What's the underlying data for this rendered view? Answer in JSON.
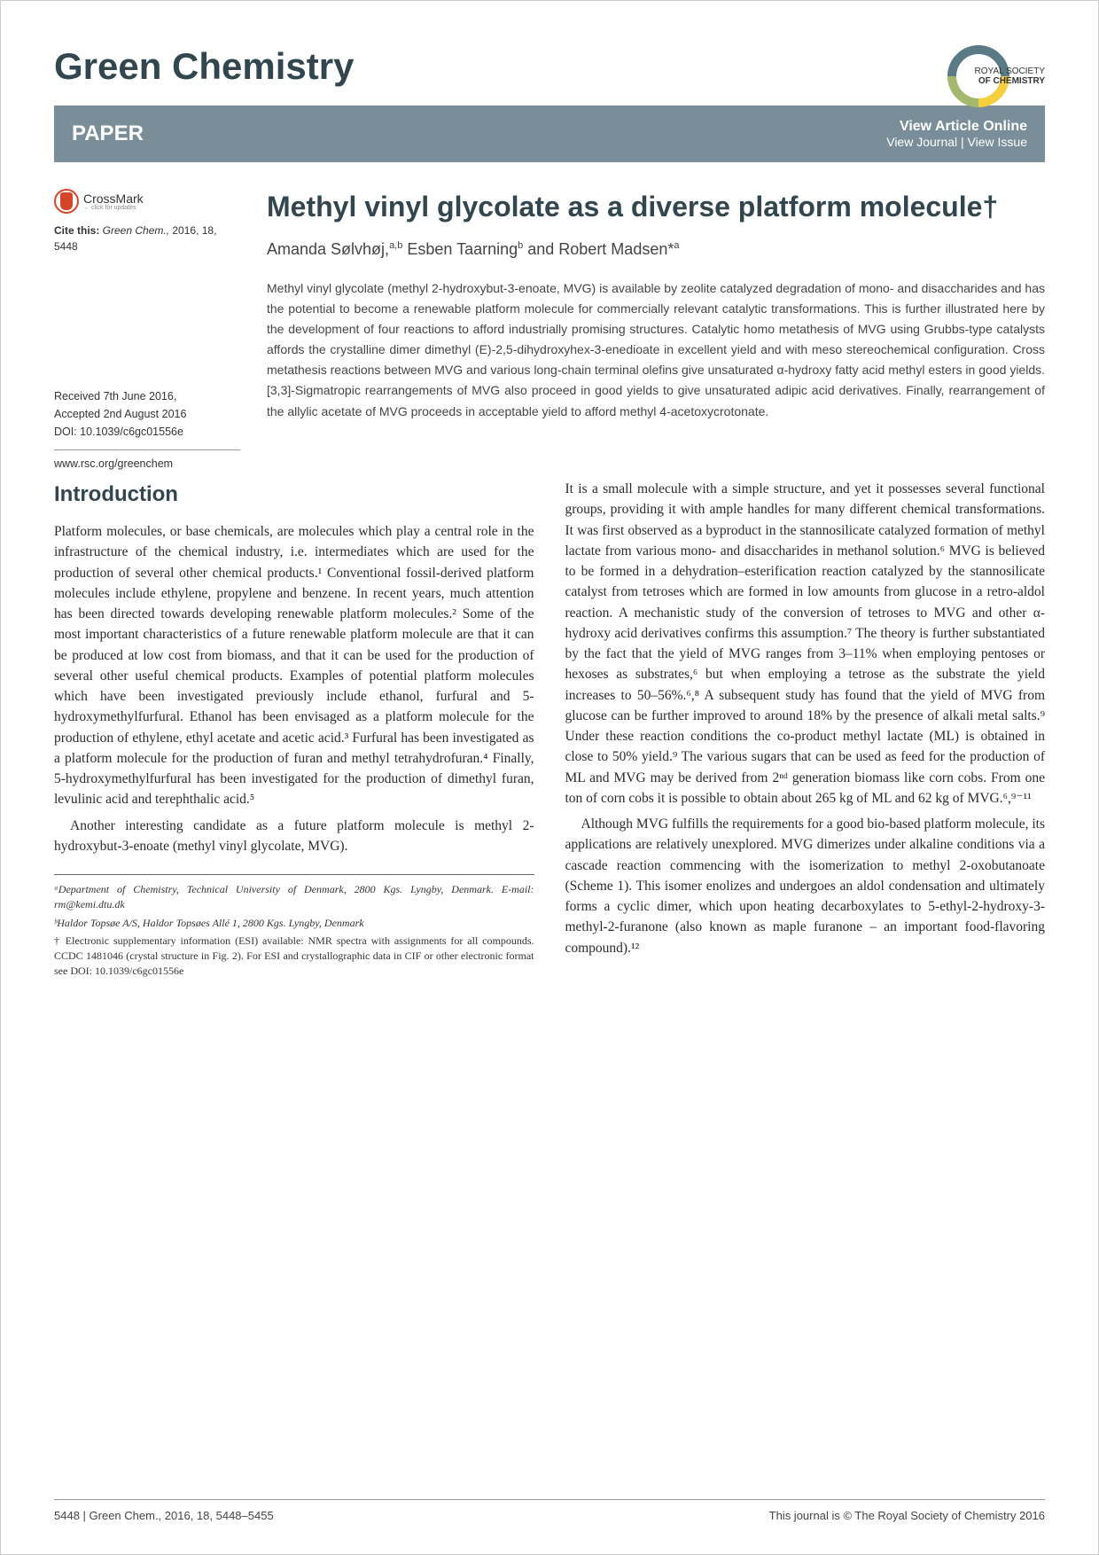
{
  "journal": "Green Chemistry",
  "rsc": {
    "line1": "ROYAL SOCIETY",
    "line2": "OF CHEMISTRY"
  },
  "paperBar": {
    "label": "PAPER",
    "viewArticle": "View Article Online",
    "viewJournal": "View Journal | View Issue"
  },
  "crossmark": {
    "title": "CrossMark",
    "sub": "← click for updates"
  },
  "cite": {
    "prefix": "Cite this: ",
    "journal": "Green Chem.,",
    "rest": " 2016, 18, 5448"
  },
  "dates": {
    "received": "Received 7th June 2016,",
    "accepted": "Accepted 2nd August 2016",
    "doi": "DOI: 10.1039/c6gc01556e"
  },
  "www": "www.rsc.org/greenchem",
  "title": "Methyl vinyl glycolate as a diverse platform molecule†",
  "authors_html": "Amanda Sølvhøj,<sup>a,b</sup> Esben Taarning<sup>b</sup> and Robert Madsen*<sup>a</sup>",
  "abstract": "Methyl vinyl glycolate (methyl 2-hydroxybut-3-enoate, MVG) is available by zeolite catalyzed degradation of mono- and disaccharides and has the potential to become a renewable platform molecule for commercially relevant catalytic transformations. This is further illustrated here by the development of four reactions to afford industrially promising structures. Catalytic homo metathesis of MVG using Grubbs-type catalysts affords the crystalline dimer dimethyl (E)-2,5-dihydroxyhex-3-enedioate in excellent yield and with meso stereochemical configuration. Cross metathesis reactions between MVG and various long-chain terminal olefins give unsaturated α-hydroxy fatty acid methyl esters in good yields. [3,3]-Sigmatropic rearrangements of MVG also proceed in good yields to give unsaturated adipic acid derivatives. Finally, rearrangement of the allylic acetate of MVG proceeds in acceptable yield to afford methyl 4-acetoxycrotonate.",
  "intro": {
    "heading": "Introduction",
    "p1": "Platform molecules, or base chemicals, are molecules which play a central role in the infrastructure of the chemical industry, i.e. intermediates which are used for the production of several other chemical products.¹ Conventional fossil-derived platform molecules include ethylene, propylene and benzene. In recent years, much attention has been directed towards developing renewable platform molecules.² Some of the most important characteristics of a future renewable platform molecule are that it can be produced at low cost from biomass, and that it can be used for the production of several other useful chemical products. Examples of potential platform molecules which have been investigated previously include ethanol, furfural and 5-hydroxymethylfurfural. Ethanol has been envisaged as a platform molecule for the production of ethylene, ethyl acetate and acetic acid.³ Furfural has been investigated as a platform molecule for the production of furan and methyl tetrahydrofuran.⁴ Finally, 5-hydroxymethylfurfural has been investigated for the production of dimethyl furan, levulinic acid and terephthalic acid.⁵",
    "p2": "Another interesting candidate as a future platform molecule is methyl 2-hydroxybut-3-enoate (methyl vinyl glycolate, MVG).",
    "p3": "It is a small molecule with a simple structure, and yet it possesses several functional groups, providing it with ample handles for many different chemical transformations. It was first observed as a byproduct in the stannosilicate catalyzed formation of methyl lactate from various mono- and disaccharides in methanol solution.⁶ MVG is believed to be formed in a dehydration–esterification reaction catalyzed by the stannosilicate catalyst from tetroses which are formed in low amounts from glucose in a retro-aldol reaction. A mechanistic study of the conversion of tetroses to MVG and other α-hydroxy acid derivatives confirms this assumption.⁷ The theory is further substantiated by the fact that the yield of MVG ranges from 3–11% when employing pentoses or hexoses as substrates,⁶ but when employing a tetrose as the substrate the yield increases to 50–56%.⁶,⁸ A subsequent study has found that the yield of MVG from glucose can be further improved to around 18% by the presence of alkali metal salts.⁹ Under these reaction conditions the co-product methyl lactate (ML) is obtained in close to 50% yield.⁹ The various sugars that can be used as feed for the production of ML and MVG may be derived from 2ⁿᵈ generation biomass like corn cobs. From one ton of corn cobs it is possible to obtain about 265 kg of ML and 62 kg of MVG.⁶,⁹⁻¹¹",
    "p4": "Although MVG fulfills the requirements for a good bio-based platform molecule, its applications are relatively unexplored. MVG dimerizes under alkaline conditions via a cascade reaction commencing with the isomerization to methyl 2-oxobutanoate (Scheme 1). This isomer enolizes and undergoes an aldol condensation and ultimately forms a cyclic dimer, which upon heating decarboxylates to 5-ethyl-2-hydroxy-3-methyl-2-furanone (also known as maple furanone – an important food-flavoring compound).¹²"
  },
  "footnotes": {
    "a": "ᵃDepartment of Chemistry, Technical University of Denmark, 2800 Kgs. Lyngby, Denmark. E-mail: rm@kemi.dtu.dk",
    "b": "ᵇHaldor Topsøe A/S, Haldor Topsøes Allé 1, 2800 Kgs. Lyngby, Denmark",
    "esi": "† Electronic supplementary information (ESI) available: NMR spectra with assignments for all compounds. CCDC 1481046 (crystal structure in Fig. 2). For ESI and crystallographic data in CIF or other electronic format see DOI: 10.1039/c6gc01556e"
  },
  "footer": {
    "left": "5448 | Green Chem., 2016, 18, 5448–5455",
    "right": "This journal is © The Royal Society of Chemistry 2016"
  }
}
